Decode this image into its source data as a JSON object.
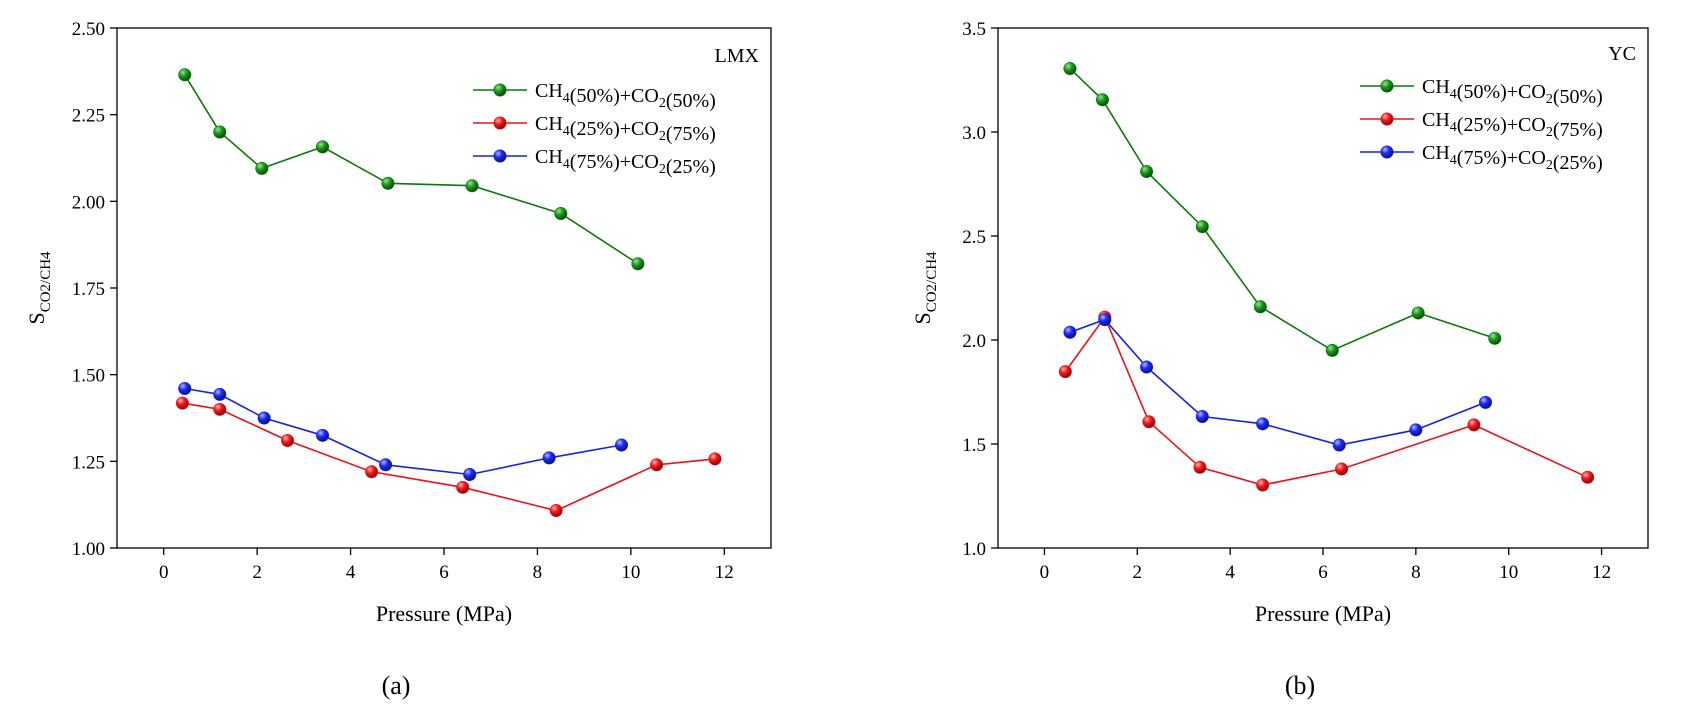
{
  "figure": {
    "panels": [
      "(a)",
      "(b)"
    ]
  },
  "chart_data": [
    {
      "type": "line",
      "panel_label": "(a)",
      "annotation": "LMX",
      "xlabel": "Pressure (MPa)",
      "ylabel": "S",
      "ylabel_sub": "CO2/CH4",
      "xlim": [
        -1,
        13
      ],
      "ylim": [
        1.0,
        2.5
      ],
      "xticks": [
        0,
        2,
        4,
        6,
        8,
        10,
        12
      ],
      "xtick_labels": [
        "0",
        "2",
        "4",
        "6",
        "8",
        "10",
        "12"
      ],
      "yticks": [
        1.0,
        1.25,
        1.5,
        1.75,
        2.0,
        2.25,
        2.5
      ],
      "ytick_labels": [
        "1.00",
        "1.25",
        "1.50",
        "1.75",
        "2.00",
        "2.25",
        "2.50"
      ],
      "grid": false,
      "legend_position": "top-right",
      "series": [
        {
          "name_parts": [
            [
              "CH",
              "4",
              "(50%)+CO",
              "2",
              "(50%)"
            ]
          ],
          "name": "CH4(50%)+CO2(50%)",
          "color": "#0a7a0a",
          "points": [
            [
              0.45,
              2.365
            ],
            [
              1.2,
              2.2
            ],
            [
              2.1,
              2.095
            ],
            [
              3.4,
              2.157
            ],
            [
              4.8,
              2.052
            ],
            [
              6.6,
              2.045
            ],
            [
              8.5,
              1.965
            ],
            [
              10.15,
              1.82
            ]
          ]
        },
        {
          "name": "CH4(25%)+CO2(75%)",
          "color": "#e8141b",
          "points": [
            [
              0.4,
              1.418
            ],
            [
              1.2,
              1.4
            ],
            [
              2.65,
              1.31
            ],
            [
              4.45,
              1.22
            ],
            [
              6.4,
              1.175
            ],
            [
              8.4,
              1.108
            ],
            [
              10.55,
              1.24
            ],
            [
              11.8,
              1.257
            ]
          ]
        },
        {
          "name": "CH4(75%)+CO2(25%)",
          "color": "#1222e8",
          "points": [
            [
              0.45,
              1.46
            ],
            [
              1.2,
              1.443
            ],
            [
              2.15,
              1.375
            ],
            [
              3.4,
              1.325
            ],
            [
              4.75,
              1.24
            ],
            [
              6.55,
              1.212
            ],
            [
              8.25,
              1.26
            ],
            [
              9.8,
              1.297
            ]
          ]
        }
      ]
    },
    {
      "type": "line",
      "panel_label": "(b)",
      "annotation": "YC",
      "xlabel": "Pressure (MPa)",
      "ylabel": "S",
      "ylabel_sub": "CO2/CH4",
      "xlim": [
        -1,
        13
      ],
      "ylim": [
        1.0,
        3.5
      ],
      "xticks": [
        0,
        2,
        4,
        6,
        8,
        10,
        12
      ],
      "xtick_labels": [
        "0",
        "2",
        "4",
        "6",
        "8",
        "10",
        "12"
      ],
      "yticks": [
        1.0,
        1.5,
        2.0,
        2.5,
        3.0,
        3.5
      ],
      "ytick_labels": [
        "1.0",
        "1.5",
        "2.0",
        "2.5",
        "3.0",
        "3.5"
      ],
      "grid": false,
      "legend_position": "top-right",
      "series": [
        {
          "name": "CH4(50%)+CO2(50%)",
          "color": "#0a7a0a",
          "points": [
            [
              0.55,
              3.305
            ],
            [
              1.25,
              3.155
            ],
            [
              2.2,
              2.81
            ],
            [
              3.4,
              2.545
            ],
            [
              4.65,
              2.16
            ],
            [
              6.2,
              1.95
            ],
            [
              8.05,
              2.13
            ],
            [
              9.7,
              2.008
            ]
          ]
        },
        {
          "name": "CH4(25%)+CO2(75%)",
          "color": "#e8141b",
          "points": [
            [
              0.45,
              1.848
            ],
            [
              1.3,
              2.11
            ],
            [
              2.25,
              1.607
            ],
            [
              3.35,
              1.388
            ],
            [
              4.7,
              1.303
            ],
            [
              6.4,
              1.38
            ],
            [
              9.25,
              1.592
            ],
            [
              11.7,
              1.34
            ]
          ]
        },
        {
          "name": "CH4(75%)+CO2(25%)",
          "color": "#1222e8",
          "points": [
            [
              0.55,
              2.037
            ],
            [
              1.3,
              2.098
            ],
            [
              2.2,
              1.87
            ],
            [
              3.4,
              1.632
            ],
            [
              4.7,
              1.597
            ],
            [
              6.35,
              1.495
            ],
            [
              8.0,
              1.568
            ],
            [
              9.5,
              1.7
            ]
          ]
        }
      ]
    }
  ]
}
